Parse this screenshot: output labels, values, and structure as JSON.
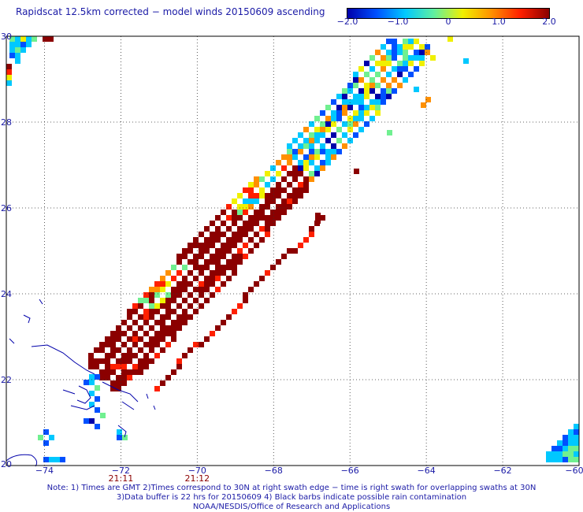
{
  "title": "Rapidscat 12.5km corrected − model winds 20150609 ascending",
  "colorbar": {
    "min": -2.0,
    "max": 2.0,
    "labels": [
      "−2.0",
      "−1.0",
      "0",
      "1.0",
      "2.0"
    ],
    "colors": [
      "#0000aa",
      "#0050ff",
      "#00c8ff",
      "#60f0a0",
      "#f0f000",
      "#ff9000",
      "#ff2000",
      "#8b0000"
    ]
  },
  "axes": {
    "lon_min": -75,
    "lon_max": -60,
    "lat_min": 20,
    "lat_max": 30,
    "x_ticks": [
      "−74",
      "−72",
      "−70",
      "−68",
      "−66",
      "−64",
      "−62",
      "−60"
    ],
    "y_ticks": [
      "30",
      "28",
      "26",
      "24",
      "22",
      "20"
    ],
    "grid": "dotted"
  },
  "times": [
    "21:11",
    "21:12"
  ],
  "notes": [
    "Note: 1) Times are GMT 2)Times correspond to 30N at right swath edge − time is right swath for overlapping swaths at 30N",
    "3)Data buffer is 22 hrs for 20150609 4) Black barbs indicate possible rain contamination",
    "NOAA/NESDIS/Office of Research and Applications"
  ]
}
